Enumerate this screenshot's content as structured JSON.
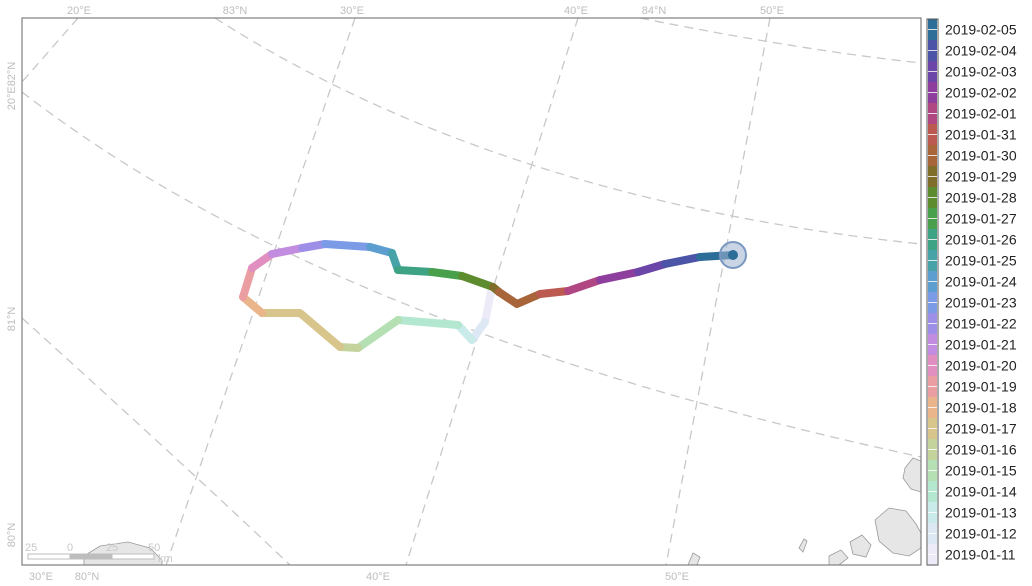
{
  "graticule_labels": {
    "top": [
      "20°E",
      "83°N",
      "30°E",
      "40°E",
      "84°N",
      "50°E"
    ],
    "bottom": [
      "30°E",
      "80°N",
      "40°E",
      "50°E"
    ],
    "left": [
      "20°E82°N",
      "81°N",
      "80°N"
    ]
  },
  "scalebar": {
    "labels": [
      "25",
      "0",
      "25",
      "50"
    ],
    "unit": "km"
  },
  "legend": {
    "dates": [
      "2019-02-05",
      "2019-02-04",
      "2019-02-03",
      "2019-02-02",
      "2019-02-01",
      "2019-01-31",
      "2019-01-30",
      "2019-01-29",
      "2019-01-28",
      "2019-01-27",
      "2019-01-26",
      "2019-01-25",
      "2019-01-24",
      "2019-01-23",
      "2019-01-22",
      "2019-01-21",
      "2019-01-20",
      "2019-01-19",
      "2019-01-18",
      "2019-01-17",
      "2019-01-16",
      "2019-01-15",
      "2019-01-14",
      "2019-01-13",
      "2019-01-12",
      "2019-01-11"
    ],
    "colors": [
      "#2d6e98",
      "#4b54a6",
      "#6b46a8",
      "#8e3f9e",
      "#b04682",
      "#bc5a52",
      "#a8653a",
      "#7f6e2a",
      "#5d8c2f",
      "#48a04d",
      "#3ea385",
      "#47a3a8",
      "#5d9ed0",
      "#7c9be6",
      "#9d8fe8",
      "#c28ce0",
      "#e08fc0",
      "#eb9ea2",
      "#eab58b",
      "#d8c58b",
      "#c4d39c",
      "#b5e0b4",
      "#b4e7d0",
      "#c9ebe9",
      "#dce8f3",
      "#ecebf7"
    ]
  }
}
